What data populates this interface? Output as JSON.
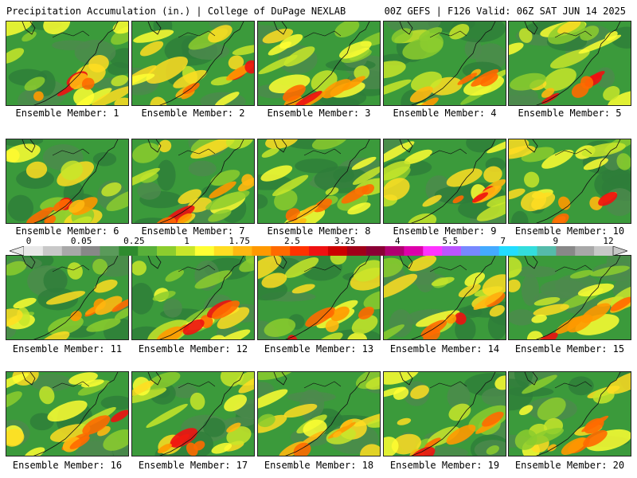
{
  "header": {
    "left_title": "Precipitation Accumulation (in.) | College of DuPage NEXLAB",
    "right_title": "00Z GEFS | F126 Valid: 06Z SAT JUN 14 2025"
  },
  "panels": [
    {
      "label": "Ensemble Member: 1"
    },
    {
      "label": "Ensemble Member: 2"
    },
    {
      "label": "Ensemble Member: 3"
    },
    {
      "label": "Ensemble Member: 4"
    },
    {
      "label": "Ensemble Member: 5"
    },
    {
      "label": "Ensemble Member: 6"
    },
    {
      "label": "Ensemble Member: 7"
    },
    {
      "label": "Ensemble Member: 8"
    },
    {
      "label": "Ensemble Member: 9"
    },
    {
      "label": "Ensemble Member: 10"
    },
    {
      "label": "Ensemble Member: 11"
    },
    {
      "label": "Ensemble Member: 12"
    },
    {
      "label": "Ensemble Member: 13"
    },
    {
      "label": "Ensemble Member: 14"
    },
    {
      "label": "Ensemble Member: 15"
    },
    {
      "label": "Ensemble Member: 16"
    },
    {
      "label": "Ensemble Member: 17"
    },
    {
      "label": "Ensemble Member: 18"
    },
    {
      "label": "Ensemble Member: 19"
    },
    {
      "label": "Ensemble Member: 20"
    }
  ],
  "colorbar": {
    "tick_labels": [
      "0",
      "0.05",
      "0.25",
      "1",
      "1.75",
      "2.5",
      "3.25",
      "4",
      "5.5",
      "7",
      "9",
      "12"
    ],
    "colors": [
      "#e8e8e8",
      "#c8c8c8",
      "#a8a8a8",
      "#888888",
      "#5a9a5a",
      "#2e8b2e",
      "#58b03a",
      "#8ccd2e",
      "#c8e62a",
      "#ffff33",
      "#ffdd22",
      "#ffb811",
      "#ff9900",
      "#ff6a00",
      "#ff3300",
      "#ee1111",
      "#cc0000",
      "#a00018",
      "#8a0035",
      "#b00070",
      "#dd00aa",
      "#ff33ff",
      "#bb55ff",
      "#7788ff",
      "#44aaff",
      "#22ddff",
      "#33dddd",
      "#55bbaa",
      "#888888",
      "#a8a8a8",
      "#c8c8c8"
    ]
  }
}
